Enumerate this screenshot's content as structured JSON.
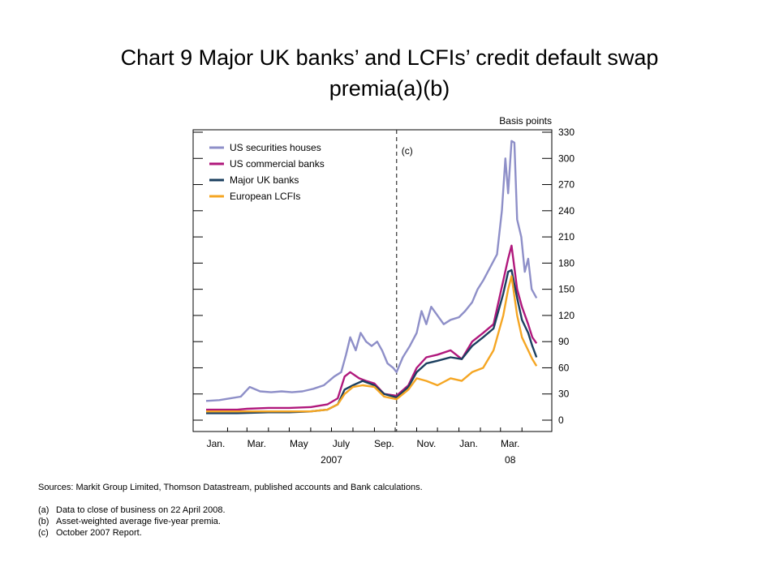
{
  "title_line1": "Chart 9  Major UK banks’ and LCFIs’ credit default swap",
  "title_line2": "premia(a)(b)",
  "notes": {
    "sources": "Sources:  Markit Group Limited, Thomson Datastream, published accounts and Bank calculations.",
    "footnotes": [
      {
        "key": "(a)",
        "text": "Data to close of business on 22 April 2008."
      },
      {
        "key": "(b)",
        "text": "Asset-weighted average five-year premia."
      },
      {
        "key": "(c)",
        "text": "October 2007 Report."
      }
    ]
  },
  "chart_data": {
    "type": "line",
    "ylabel": "Basis points",
    "ylim": [
      0,
      330
    ],
    "yticks": [
      0,
      30,
      60,
      90,
      120,
      150,
      180,
      210,
      240,
      270,
      300,
      330
    ],
    "xlim": [
      "2007-01-01",
      "2008-04-30"
    ],
    "x_month_labels": [
      {
        "label": "Jan.",
        "date": "2007-01-15"
      },
      {
        "label": "Mar.",
        "date": "2007-03-15"
      },
      {
        "label": "May",
        "date": "2007-05-15"
      },
      {
        "label": "July",
        "date": "2007-07-15"
      },
      {
        "label": "Sep.",
        "date": "2007-09-15"
      },
      {
        "label": "Nov.",
        "date": "2007-11-15"
      },
      {
        "label": "Jan.",
        "date": "2008-01-15"
      },
      {
        "label": "Mar.",
        "date": "2008-03-15"
      }
    ],
    "x_year_labels": [
      {
        "label": "2007",
        "date": "2007-07-01"
      },
      {
        "label": "08",
        "date": "2008-03-15"
      }
    ],
    "annotation": {
      "label": "(c)",
      "date": "2007-10-03"
    },
    "legend_position": "top-left",
    "series": [
      {
        "name": "US securities houses",
        "color": "#8e8fc8",
        "points": [
          [
            "2007-01-01",
            22
          ],
          [
            "2007-01-20",
            23
          ],
          [
            "2007-02-05",
            25
          ],
          [
            "2007-02-20",
            27
          ],
          [
            "2007-03-05",
            38
          ],
          [
            "2007-03-20",
            33
          ],
          [
            "2007-04-05",
            32
          ],
          [
            "2007-04-20",
            33
          ],
          [
            "2007-05-05",
            32
          ],
          [
            "2007-05-20",
            33
          ],
          [
            "2007-06-05",
            36
          ],
          [
            "2007-06-20",
            40
          ],
          [
            "2007-07-05",
            50
          ],
          [
            "2007-07-15",
            55
          ],
          [
            "2007-07-22",
            75
          ],
          [
            "2007-07-28",
            95
          ],
          [
            "2007-08-05",
            80
          ],
          [
            "2007-08-12",
            100
          ],
          [
            "2007-08-20",
            90
          ],
          [
            "2007-08-28",
            85
          ],
          [
            "2007-09-05",
            90
          ],
          [
            "2007-09-12",
            80
          ],
          [
            "2007-09-20",
            65
          ],
          [
            "2007-09-28",
            60
          ],
          [
            "2007-10-03",
            55
          ],
          [
            "2007-10-12",
            72
          ],
          [
            "2007-10-22",
            85
          ],
          [
            "2007-11-01",
            100
          ],
          [
            "2007-11-08",
            125
          ],
          [
            "2007-11-15",
            110
          ],
          [
            "2007-11-22",
            130
          ],
          [
            "2007-12-01",
            120
          ],
          [
            "2007-12-10",
            110
          ],
          [
            "2007-12-20",
            115
          ],
          [
            "2008-01-01",
            118
          ],
          [
            "2008-01-10",
            125
          ],
          [
            "2008-01-20",
            135
          ],
          [
            "2008-01-28",
            150
          ],
          [
            "2008-02-05",
            160
          ],
          [
            "2008-02-15",
            175
          ],
          [
            "2008-02-25",
            190
          ],
          [
            "2008-03-03",
            240
          ],
          [
            "2008-03-08",
            300
          ],
          [
            "2008-03-12",
            260
          ],
          [
            "2008-03-17",
            320
          ],
          [
            "2008-03-21",
            318
          ],
          [
            "2008-03-25",
            230
          ],
          [
            "2008-03-31",
            210
          ],
          [
            "2008-04-05",
            170
          ],
          [
            "2008-04-10",
            185
          ],
          [
            "2008-04-15",
            150
          ],
          [
            "2008-04-22",
            140
          ]
        ]
      },
      {
        "name": "US commercial banks",
        "color": "#b0187c",
        "points": [
          [
            "2007-01-01",
            12
          ],
          [
            "2007-02-15",
            12
          ],
          [
            "2007-03-01",
            13
          ],
          [
            "2007-04-01",
            14
          ],
          [
            "2007-05-01",
            14
          ],
          [
            "2007-06-01",
            15
          ],
          [
            "2007-06-25",
            18
          ],
          [
            "2007-07-10",
            25
          ],
          [
            "2007-07-20",
            50
          ],
          [
            "2007-07-28",
            55
          ],
          [
            "2007-08-10",
            48
          ],
          [
            "2007-08-20",
            45
          ],
          [
            "2007-09-01",
            42
          ],
          [
            "2007-09-15",
            30
          ],
          [
            "2007-10-03",
            28
          ],
          [
            "2007-10-20",
            40
          ],
          [
            "2007-11-01",
            60
          ],
          [
            "2007-11-15",
            72
          ],
          [
            "2007-12-01",
            75
          ],
          [
            "2007-12-20",
            80
          ],
          [
            "2008-01-05",
            70
          ],
          [
            "2008-01-20",
            90
          ],
          [
            "2008-02-05",
            100
          ],
          [
            "2008-02-20",
            110
          ],
          [
            "2008-03-05",
            160
          ],
          [
            "2008-03-12",
            185
          ],
          [
            "2008-03-17",
            200
          ],
          [
            "2008-03-25",
            150
          ],
          [
            "2008-04-01",
            130
          ],
          [
            "2008-04-10",
            110
          ],
          [
            "2008-04-16",
            95
          ],
          [
            "2008-04-22",
            88
          ]
        ]
      },
      {
        "name": "Major UK banks",
        "color": "#1b3f5f",
        "points": [
          [
            "2007-01-01",
            8
          ],
          [
            "2007-02-15",
            8
          ],
          [
            "2007-04-01",
            9
          ],
          [
            "2007-05-01",
            9
          ],
          [
            "2007-06-01",
            10
          ],
          [
            "2007-06-25",
            12
          ],
          [
            "2007-07-10",
            18
          ],
          [
            "2007-07-20",
            35
          ],
          [
            "2007-08-01",
            40
          ],
          [
            "2007-08-15",
            45
          ],
          [
            "2007-09-01",
            40
          ],
          [
            "2007-09-15",
            30
          ],
          [
            "2007-10-03",
            26
          ],
          [
            "2007-10-20",
            38
          ],
          [
            "2007-11-01",
            55
          ],
          [
            "2007-11-15",
            65
          ],
          [
            "2007-12-01",
            68
          ],
          [
            "2007-12-20",
            72
          ],
          [
            "2008-01-05",
            70
          ],
          [
            "2008-01-20",
            85
          ],
          [
            "2008-02-05",
            95
          ],
          [
            "2008-02-20",
            105
          ],
          [
            "2008-03-05",
            145
          ],
          [
            "2008-03-12",
            170
          ],
          [
            "2008-03-17",
            172
          ],
          [
            "2008-03-25",
            140
          ],
          [
            "2008-04-01",
            115
          ],
          [
            "2008-04-10",
            100
          ],
          [
            "2008-04-16",
            85
          ],
          [
            "2008-04-22",
            72
          ]
        ]
      },
      {
        "name": "European LCFIs",
        "color": "#f5a623",
        "points": [
          [
            "2007-01-01",
            10
          ],
          [
            "2007-02-15",
            10
          ],
          [
            "2007-04-01",
            10
          ],
          [
            "2007-05-01",
            10
          ],
          [
            "2007-06-01",
            10
          ],
          [
            "2007-06-25",
            12
          ],
          [
            "2007-07-10",
            18
          ],
          [
            "2007-07-20",
            30
          ],
          [
            "2007-08-01",
            38
          ],
          [
            "2007-08-15",
            40
          ],
          [
            "2007-09-01",
            38
          ],
          [
            "2007-09-15",
            27
          ],
          [
            "2007-10-03",
            24
          ],
          [
            "2007-10-20",
            35
          ],
          [
            "2007-11-01",
            48
          ],
          [
            "2007-11-15",
            45
          ],
          [
            "2007-12-01",
            40
          ],
          [
            "2007-12-20",
            48
          ],
          [
            "2008-01-05",
            45
          ],
          [
            "2008-01-20",
            55
          ],
          [
            "2008-02-05",
            60
          ],
          [
            "2008-02-20",
            80
          ],
          [
            "2008-03-05",
            120
          ],
          [
            "2008-03-12",
            150
          ],
          [
            "2008-03-17",
            165
          ],
          [
            "2008-03-25",
            120
          ],
          [
            "2008-04-01",
            95
          ],
          [
            "2008-04-10",
            80
          ],
          [
            "2008-04-16",
            70
          ],
          [
            "2008-04-22",
            62
          ]
        ]
      }
    ]
  }
}
